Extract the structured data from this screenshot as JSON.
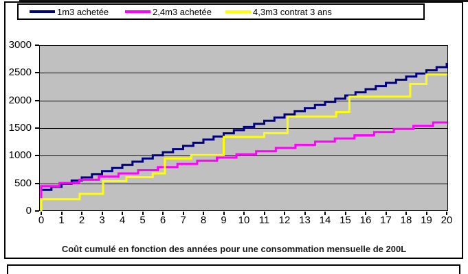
{
  "chart_data": {
    "type": "line",
    "stepped": true,
    "title": "Coût cumulé en fonction des années pour une consommation mensuelle de 200L",
    "legend_position": "top",
    "plot_background": "#C0C0C0",
    "gridline_color": "#000000",
    "x_axis": {
      "min": 0,
      "max": 20,
      "labels": [
        "0",
        "1",
        "2",
        "3",
        "4",
        "5",
        "6",
        "7",
        "8",
        "9",
        "10",
        "11",
        "12",
        "13",
        "14",
        "15",
        "16",
        "17",
        "18",
        "19",
        "20"
      ]
    },
    "y_axis": {
      "min": 0,
      "max": 3000,
      "tick_step": 500,
      "tick_labels": [
        "3000",
        "2500",
        "2000",
        "1500",
        "1000",
        "500",
        "0"
      ]
    },
    "series": [
      {
        "name": "1m3 achetée",
        "color": "#000080",
        "model": "uniform_steps",
        "start_value": 380,
        "step_value": 57,
        "first_step_year": 0.5,
        "step_interval_years": 0.5,
        "end_year": 20,
        "end_value": 2660,
        "yearly_values": [
          380,
          494,
          608,
          722,
          836,
          950,
          1064,
          1178,
          1292,
          1406,
          1520,
          1634,
          1748,
          1862,
          1976,
          2090,
          2204,
          2318,
          2432,
          2546,
          2660
        ]
      },
      {
        "name": "2,4m3 achetée",
        "color": "#FF00FF",
        "model": "uniform_steps",
        "start_value": 450,
        "step_value": 57.5,
        "first_step_year": 0.9,
        "step_interval_years": 0.97,
        "end_year": 20,
        "end_value": 1600,
        "yearly_values": [
          450,
          507.5,
          565,
          622.5,
          680,
          737.5,
          795,
          852.5,
          910,
          967.5,
          1025,
          1082.5,
          1140,
          1197.5,
          1255,
          1312.5,
          1370,
          1427.5,
          1485,
          1542.5,
          1600
        ]
      },
      {
        "name": "4,3m3 contrat 3 ans",
        "color": "#FFFF00",
        "model": "breakpoint_steps",
        "start_value": 0,
        "breakpoints": [
          [
            0,
            215
          ],
          [
            1.9,
            310
          ],
          [
            3.05,
            540
          ],
          [
            4.2,
            612
          ],
          [
            5.5,
            680
          ],
          [
            6.1,
            950
          ],
          [
            7.4,
            1012
          ],
          [
            9.0,
            1340
          ],
          [
            11.0,
            1408
          ],
          [
            12.15,
            1710
          ],
          [
            14.55,
            1790
          ],
          [
            15.2,
            2070
          ],
          [
            18.2,
            2300
          ],
          [
            19.0,
            2470
          ]
        ],
        "end_year": 20,
        "end_value": 2470
      }
    ]
  }
}
